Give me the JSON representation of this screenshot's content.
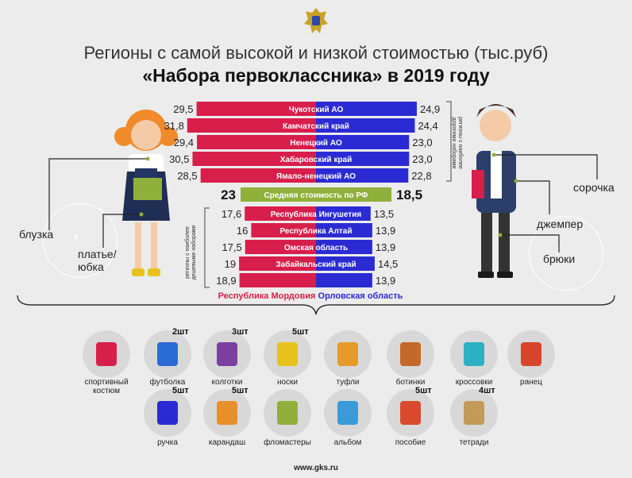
{
  "header": {
    "title_line1": "Регионы с самой высокой и низкой стоимостью (тыс.руб)",
    "title_line2": "«Набора первоклассника» в 2019 году"
  },
  "side_notes": {
    "top": "регионы с наиболее дорогими наборами",
    "bottom": "регионы с наиболее дешевыми наборами"
  },
  "callouts": {
    "girl_blouse": "блузка",
    "girl_dress": "платье/ юбка",
    "boy_shirt": "сорочка",
    "boy_sweater": "джемпер",
    "boy_trousers": "брюки"
  },
  "chart_data": {
    "type": "bar",
    "orientation": "horizontal-diverging",
    "legend": [
      {
        "name": "Республика Мордовия",
        "color": "#d81e4b",
        "side": "left"
      },
      {
        "name": "Орловская область",
        "color": "#2b2bd4",
        "side": "right"
      }
    ],
    "expensive": [
      {
        "region": "Чукотский АО",
        "left": 29.5,
        "right": 24.9
      },
      {
        "region": "Камчатский край",
        "left": 31.8,
        "right": 24.4
      },
      {
        "region": "Ненецкий АО",
        "left": 29.4,
        "right": 23.0
      },
      {
        "region": "Хабаровский край",
        "left": 30.5,
        "right": 23.0
      },
      {
        "region": "Ямало-ненецкий АО",
        "left": 28.5,
        "right": 22.8
      }
    ],
    "average": {
      "region": "Средняя стоимость по РФ",
      "left": 23,
      "right": 18.5
    },
    "cheap": [
      {
        "region": "Республика Ингушетия",
        "left": 17.6,
        "right": 13.5
      },
      {
        "region": "Республика Алтай",
        "left": 16,
        "right": 13.9
      },
      {
        "region": "Омская область",
        "left": 17.5,
        "right": 13.9
      },
      {
        "region": "Забайкальский край",
        "left": 19,
        "right": 14.5
      },
      {
        "region": "",
        "left": 18.9,
        "right": 13.9
      }
    ],
    "value_labels": {
      "expensive_left": [
        "29,5",
        "31,8",
        "29,4",
        "30,5",
        "28,5"
      ],
      "expensive_right": [
        "24,9",
        "24,4",
        "23,0",
        "23,0",
        "22,8"
      ],
      "average_left": "23",
      "average_right": "18,5",
      "cheap_left": [
        "17,6",
        "16",
        "17,5",
        "19",
        "18,9"
      ],
      "cheap_right": [
        "13,5",
        "13,9",
        "13,9",
        "14,5",
        "13,9"
      ]
    }
  },
  "items": [
    {
      "name": "спортивный костюм",
      "qty": "",
      "icon": "tracksuit-icon"
    },
    {
      "name": "футболка",
      "qty": "2шт",
      "icon": "tshirt-icon"
    },
    {
      "name": "колготки",
      "qty": "3шт",
      "icon": "tights-icon"
    },
    {
      "name": "носки",
      "qty": "5шт",
      "icon": "socks-icon"
    },
    {
      "name": "туфли",
      "qty": "",
      "icon": "shoes-icon"
    },
    {
      "name": "ботинки",
      "qty": "",
      "icon": "boots-icon"
    },
    {
      "name": "кроссовки",
      "qty": "",
      "icon": "sneakers-icon"
    },
    {
      "name": "ранец",
      "qty": "",
      "icon": "backpack-icon"
    },
    {
      "name": "ручка",
      "qty": "5шт",
      "icon": "pen-icon"
    },
    {
      "name": "карандаш",
      "qty": "5шт",
      "icon": "pencil-icon"
    },
    {
      "name": "фломастеры",
      "qty": "",
      "icon": "markers-icon"
    },
    {
      "name": "альбом",
      "qty": "",
      "icon": "album-icon"
    },
    {
      "name": "пособие",
      "qty": "5шт",
      "icon": "books-icon"
    },
    {
      "name": "тетради",
      "qty": "4шт",
      "icon": "notebook-icon"
    }
  ],
  "footer": {
    "url": "www.gks.ru"
  },
  "colors": {
    "red": "#d81e4b",
    "blue": "#2b2bd4",
    "green": "#8fb03a"
  }
}
